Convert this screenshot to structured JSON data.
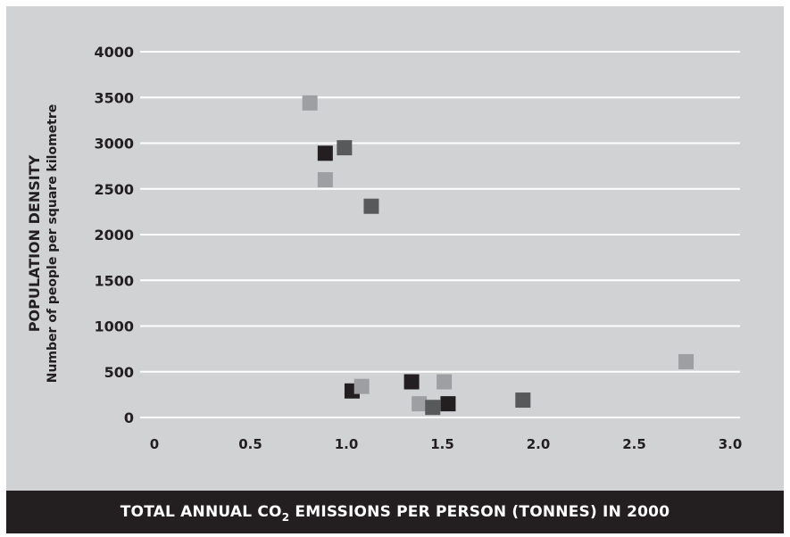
{
  "chart_data": {
    "type": "scatter",
    "title": "",
    "xlabel": {
      "prefix": "TOTAL ANNUAL CO",
      "subscript": "2",
      "suffix": " EMISSIONS PER PERSON (TONNES) IN 2000"
    },
    "ylabel": {
      "line1": "POPULATION DENSITY",
      "line2": "Number of people per square kilometre"
    },
    "xlim": [
      0,
      3.0
    ],
    "ylim": [
      0,
      4000
    ],
    "x_ticks": [
      "0",
      "0.5",
      "1.0",
      "1.5",
      "2.0",
      "2.5",
      "3.0"
    ],
    "y_ticks": [
      "0",
      "500",
      "1000",
      "1500",
      "2000",
      "2500",
      "3000",
      "3500",
      "4000"
    ],
    "grid": "horizontal",
    "legend": "none",
    "colors": {
      "light": "#9d9fa2",
      "medium": "#58595b",
      "dark": "#231f20"
    },
    "points": [
      {
        "x": 0.81,
        "y": 3440,
        "color": "light"
      },
      {
        "x": 0.89,
        "y": 2890,
        "color": "dark"
      },
      {
        "x": 0.99,
        "y": 2950,
        "color": "medium"
      },
      {
        "x": 0.89,
        "y": 2600,
        "color": "light"
      },
      {
        "x": 1.13,
        "y": 2310,
        "color": "medium"
      },
      {
        "x": 1.03,
        "y": 290,
        "color": "dark"
      },
      {
        "x": 1.08,
        "y": 340,
        "color": "light"
      },
      {
        "x": 1.34,
        "y": 390,
        "color": "dark"
      },
      {
        "x": 1.38,
        "y": 150,
        "color": "light"
      },
      {
        "x": 1.45,
        "y": 110,
        "color": "medium"
      },
      {
        "x": 1.51,
        "y": 390,
        "color": "light"
      },
      {
        "x": 1.53,
        "y": 150,
        "color": "dark"
      },
      {
        "x": 1.92,
        "y": 190,
        "color": "medium"
      },
      {
        "x": 2.77,
        "y": 610,
        "color": "light"
      }
    ]
  }
}
